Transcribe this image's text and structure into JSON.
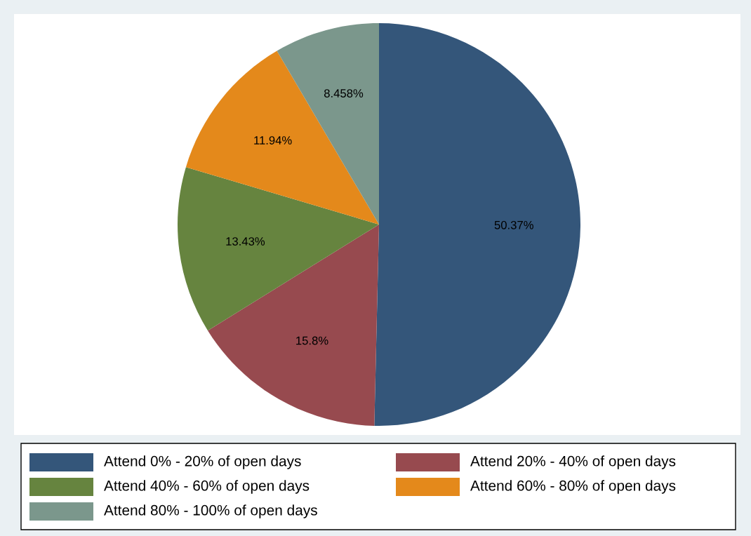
{
  "chart_data": {
    "type": "pie",
    "categories": [
      "Attend 0% - 20% of open days",
      "Attend 20% - 40% of open days",
      "Attend 40% - 60% of open days",
      "Attend 60% - 80% of open days",
      "Attend 80% - 100% of open days"
    ],
    "values": [
      50.37,
      15.8,
      13.43,
      11.94,
      8.458
    ],
    "value_labels": [
      "50.37%",
      "15.8%",
      "13.43%",
      "11.94%",
      "8.458%"
    ],
    "colors": [
      "#34567a",
      "#974a4f",
      "#66843f",
      "#e4891b",
      "#7b978c"
    ],
    "legend": "bottom"
  }
}
